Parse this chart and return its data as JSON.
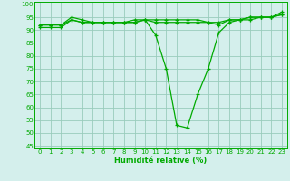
{
  "xlabel": "Humidité relative (%)",
  "background_color": "#d4efec",
  "grid_color": "#99ccbb",
  "line_color": "#00aa00",
  "xlim": [
    -0.5,
    23.5
  ],
  "ylim": [
    44,
    101
  ],
  "yticks": [
    45,
    50,
    55,
    60,
    65,
    70,
    75,
    80,
    85,
    90,
    95,
    100
  ],
  "xticks": [
    0,
    1,
    2,
    3,
    4,
    5,
    6,
    7,
    8,
    9,
    10,
    11,
    12,
    13,
    14,
    15,
    16,
    17,
    18,
    19,
    20,
    21,
    22,
    23
  ],
  "series1": [
    91,
    91,
    91,
    94,
    93,
    93,
    93,
    93,
    93,
    93,
    94,
    88,
    75,
    53,
    52,
    65,
    75,
    89,
    93,
    94,
    94,
    95,
    95,
    96
  ],
  "series2": [
    92,
    92,
    92,
    94,
    93,
    93,
    93,
    93,
    93,
    93,
    94,
    93,
    93,
    93,
    93,
    93,
    93,
    93,
    94,
    94,
    95,
    95,
    95,
    96
  ],
  "series3": [
    92,
    92,
    92,
    95,
    94,
    93,
    93,
    93,
    93,
    94,
    94,
    94,
    94,
    94,
    94,
    94,
    93,
    92,
    94,
    94,
    95,
    95,
    95,
    97
  ]
}
